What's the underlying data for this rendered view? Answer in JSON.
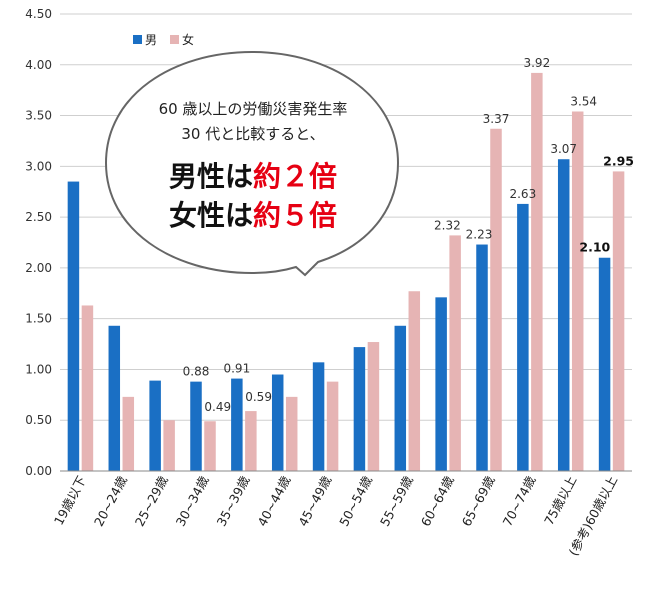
{
  "chart_data": {
    "type": "bar",
    "categories": [
      "19歳以下",
      "20~24歳",
      "25~29歳",
      "30~34歳",
      "35~39歳",
      "40~44歳",
      "45~49歳",
      "50~54歳",
      "55~59歳",
      "60~64歳",
      "65~69歳",
      "70~74歳",
      "75歳以上",
      "(参考)60歳以上"
    ],
    "series": [
      {
        "name": "男",
        "color": "#1a6fc4",
        "values": [
          2.85,
          1.43,
          0.89,
          0.88,
          0.91,
          0.95,
          1.07,
          1.22,
          1.43,
          1.71,
          2.23,
          2.63,
          3.07,
          2.1
        ]
      },
      {
        "name": "女",
        "color": "#e6b4b4",
        "values": [
          1.63,
          0.73,
          0.5,
          0.49,
          0.59,
          0.73,
          0.88,
          1.27,
          1.77,
          2.32,
          3.37,
          3.92,
          3.54,
          2.95
        ]
      }
    ],
    "data_labels": {
      "男": [
        "",
        "",
        "",
        "0.88",
        "0.91",
        "",
        "",
        "",
        "",
        "",
        "2.23",
        "2.63",
        "3.07",
        "2.10"
      ],
      "女": [
        "",
        "",
        "",
        "0.49",
        "0.59",
        "",
        "",
        "",
        "",
        "2.32",
        "3.37",
        "3.92",
        "3.54",
        "2.95"
      ]
    },
    "ylim": [
      0,
      4.5
    ],
    "yticks": [
      "0.00",
      "0.50",
      "1.00",
      "1.50",
      "2.00",
      "2.50",
      "3.00",
      "3.50",
      "4.00",
      "4.50"
    ],
    "grid": true,
    "legend_position": "top-left",
    "xlabel": "",
    "ylabel": ""
  },
  "callout": {
    "line1": "60 歳以上の労働災害発生率",
    "line2": "30 代と比較すると、",
    "male_prefix": "男性は",
    "male_highlight": "約２倍",
    "female_prefix": "女性は",
    "female_highlight": "約５倍",
    "text_color": "#111111",
    "highlight_color": "#e60012"
  }
}
